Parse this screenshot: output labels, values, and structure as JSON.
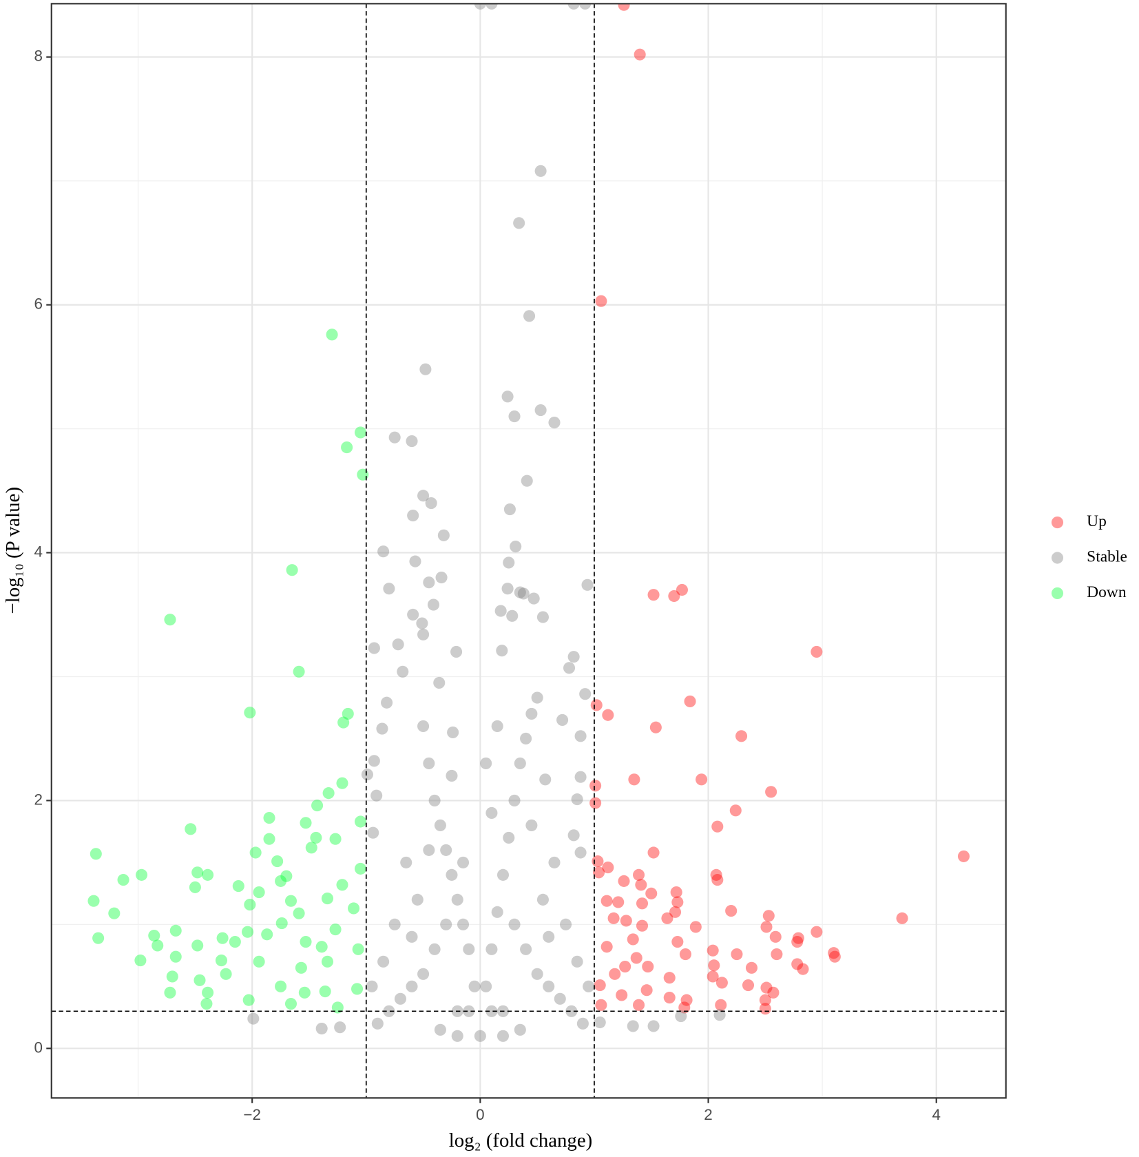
{
  "chart_data": {
    "type": "scatter",
    "xlabel": "log₂ (fold change)",
    "ylabel": "−log₁₀ (P value)",
    "xlim": [
      -3.76,
      4.61
    ],
    "ylim": [
      -0.4,
      8.43
    ],
    "xticks": [
      {
        "value": -2,
        "label": "−2"
      },
      0,
      2,
      4
    ],
    "yticks": [
      0,
      2,
      4,
      6,
      8
    ],
    "minor_xticks": [
      -3,
      -1,
      1,
      3
    ],
    "minor_yticks": [
      1,
      3,
      5,
      7
    ],
    "grid": true,
    "thresholds": {
      "x": [
        -1,
        1
      ],
      "y": 0.3
    },
    "alpha": 0.4,
    "legend": "right",
    "series": [
      {
        "name": "Up",
        "color": "#ff0000",
        "x": [
          1.26,
          1.4,
          1.06,
          1.52,
          1.7,
          1.77,
          2.95,
          1.84,
          1.02,
          1.12,
          1.54,
          2.29,
          1.35,
          1.94,
          1.01,
          2.55,
          1.01,
          2.24,
          2.08,
          1.52,
          4.24,
          1.03,
          1.12,
          1.39,
          2.07,
          1.04,
          1.26,
          2.08,
          1.41,
          1.5,
          1.72,
          1.11,
          1.21,
          1.42,
          1.73,
          2.2,
          1.71,
          2.53,
          3.7,
          1.17,
          1.64,
          1.28,
          1.42,
          2.51,
          1.89,
          2.95,
          2.59,
          2.79,
          1.34,
          2.78,
          1.73,
          1.11,
          2.04,
          3.1,
          3.11,
          2.25,
          2.6,
          1.8,
          1.37,
          2.78,
          2.83,
          2.38,
          1.27,
          1.47,
          2.05,
          1.18,
          1.66,
          2.04,
          2.12,
          2.35,
          2.51,
          2.57,
          1.05,
          1.46,
          1.24,
          1.66,
          1.81,
          2.5,
          1.06,
          1.39,
          2.11,
          2.5,
          1.79
        ],
        "values": [
          8.42,
          8.02,
          6.03,
          3.66,
          3.65,
          3.7,
          3.2,
          2.8,
          2.77,
          2.69,
          2.59,
          2.52,
          2.17,
          2.17,
          2.12,
          2.07,
          1.98,
          1.92,
          1.79,
          1.58,
          1.55,
          1.51,
          1.46,
          1.4,
          1.4,
          1.42,
          1.35,
          1.36,
          1.32,
          1.25,
          1.26,
          1.19,
          1.18,
          1.17,
          1.18,
          1.11,
          1.1,
          1.07,
          1.05,
          1.05,
          1.05,
          1.03,
          0.99,
          0.98,
          0.98,
          0.94,
          0.9,
          0.89,
          0.88,
          0.86,
          0.86,
          0.82,
          0.79,
          0.77,
          0.74,
          0.76,
          0.76,
          0.76,
          0.73,
          0.68,
          0.64,
          0.65,
          0.66,
          0.66,
          0.67,
          0.6,
          0.57,
          0.58,
          0.53,
          0.51,
          0.49,
          0.45,
          0.51,
          0.47,
          0.43,
          0.41,
          0.39,
          0.39,
          0.35,
          0.35,
          0.35,
          0.32,
          0.33
        ]
      },
      {
        "name": "Stable",
        "color": "#808080",
        "x": [
          0.0,
          0.1,
          0.82,
          0.92,
          0.53,
          0.34,
          0.43,
          -0.48,
          0.24,
          0.53,
          0.3,
          0.65,
          -0.75,
          -0.6,
          0.41,
          -0.5,
          -0.43,
          -0.59,
          0.26,
          -0.32,
          0.31,
          -0.85,
          -0.57,
          0.25,
          -0.34,
          -0.45,
          0.94,
          -0.8,
          0.24,
          0.35,
          0.38,
          0.47,
          -0.41,
          0.18,
          0.55,
          -0.59,
          -0.51,
          0.28,
          -0.5,
          -0.93,
          -0.72,
          -0.21,
          0.19,
          0.82,
          -0.68,
          0.78,
          -0.36,
          0.92,
          -0.82,
          0.5,
          0.72,
          -0.86,
          -0.24,
          0.88,
          -0.93,
          -0.99,
          0.57,
          -0.91,
          0.88,
          0.85,
          -0.94,
          0.82,
          0.88,
          -1.23,
          -1.39,
          -1.99,
          1.52,
          1.34,
          2.1,
          1.76,
          1.05,
          -0.4,
          -0.35,
          -0.3,
          -0.25,
          -0.2,
          -0.15,
          -0.1,
          -0.05,
          0.0,
          0.05,
          0.1,
          0.15,
          0.2,
          0.25,
          0.3,
          0.35,
          -0.45,
          0.4,
          -0.5,
          0.45,
          -0.3,
          -0.4,
          -0.5,
          -0.6,
          -0.7,
          -0.8,
          -0.9,
          0.3,
          0.4,
          0.5,
          0.6,
          0.7,
          0.8,
          0.9,
          -0.2,
          0.2,
          -0.35,
          0.35,
          -0.55,
          0.55,
          -0.65,
          0.65,
          -0.75,
          0.75,
          -0.85,
          0.85,
          -0.95,
          0.95,
          -0.2,
          0.2,
          -0.15,
          0.1,
          0.05,
          0.15,
          -0.25,
          -0.1,
          0.1,
          -0.6,
          0.6,
          -0.45,
          0.45
        ],
        "values": [
          8.43,
          8.43,
          8.43,
          8.43,
          7.08,
          6.66,
          5.91,
          5.48,
          5.26,
          5.15,
          5.1,
          5.05,
          4.93,
          4.9,
          4.58,
          4.46,
          4.4,
          4.3,
          4.35,
          4.14,
          4.05,
          4.01,
          3.93,
          3.92,
          3.8,
          3.76,
          3.74,
          3.71,
          3.71,
          3.68,
          3.67,
          3.63,
          3.58,
          3.53,
          3.48,
          3.5,
          3.43,
          3.49,
          3.34,
          3.23,
          3.26,
          3.2,
          3.21,
          3.16,
          3.04,
          3.07,
          2.95,
          2.86,
          2.79,
          2.83,
          2.65,
          2.58,
          2.55,
          2.52,
          2.32,
          2.21,
          2.17,
          2.04,
          2.19,
          2.01,
          1.74,
          1.72,
          1.58,
          0.17,
          0.16,
          0.24,
          0.18,
          0.18,
          0.27,
          0.26,
          0.21,
          2.0,
          1.8,
          1.6,
          1.4,
          1.2,
          1.0,
          0.8,
          0.5,
          0.1,
          0.5,
          0.8,
          1.1,
          1.4,
          1.7,
          2.0,
          2.3,
          2.3,
          2.5,
          2.6,
          2.7,
          1.0,
          0.8,
          0.6,
          0.5,
          0.4,
          0.3,
          0.2,
          1.0,
          0.8,
          0.6,
          0.5,
          0.4,
          0.3,
          0.2,
          0.3,
          0.3,
          0.15,
          0.15,
          1.2,
          1.2,
          1.5,
          1.5,
          1.0,
          1.0,
          0.7,
          0.7,
          0.5,
          0.5,
          0.1,
          0.1,
          1.5,
          1.9,
          2.3,
          2.6,
          2.2,
          0.3,
          0.3,
          0.9,
          0.9,
          1.6,
          1.8
        ]
      },
      {
        "name": "Down",
        "color": "#00ff33",
        "x": [
          -1.3,
          -1.05,
          -1.17,
          -1.03,
          -1.65,
          -2.72,
          -1.59,
          -2.02,
          -1.16,
          -1.2,
          -1.21,
          -1.33,
          -1.43,
          -1.05,
          -1.85,
          -1.53,
          -2.54,
          -1.44,
          -1.27,
          -1.85,
          -1.48,
          -1.97,
          -3.37,
          -1.78,
          -1.05,
          -2.97,
          -2.48,
          -1.7,
          -3.13,
          -2.39,
          -1.75,
          -2.12,
          -2.5,
          -1.21,
          -1.94,
          -1.34,
          -3.39,
          -1.66,
          -2.02,
          -1.11,
          -3.21,
          -1.59,
          -1.74,
          -2.67,
          -2.04,
          -1.27,
          -1.87,
          -2.86,
          -3.35,
          -2.26,
          -2.15,
          -1.53,
          -2.48,
          -2.83,
          -1.39,
          -1.07,
          -2.67,
          -2.98,
          -2.27,
          -1.94,
          -1.34,
          -1.57,
          -2.7,
          -2.23,
          -2.46,
          -1.75,
          -2.39,
          -2.72,
          -1.36,
          -1.08,
          -2.03,
          -2.4,
          -1.66,
          -1.25,
          -1.54
        ],
        "values": [
          5.76,
          4.97,
          4.85,
          4.63,
          3.86,
          3.46,
          3.04,
          2.71,
          2.7,
          2.63,
          2.14,
          2.06,
          1.96,
          1.83,
          1.86,
          1.82,
          1.77,
          1.7,
          1.69,
          1.69,
          1.62,
          1.58,
          1.57,
          1.51,
          1.45,
          1.4,
          1.42,
          1.39,
          1.36,
          1.4,
          1.35,
          1.31,
          1.3,
          1.32,
          1.26,
          1.21,
          1.19,
          1.19,
          1.16,
          1.13,
          1.09,
          1.09,
          1.01,
          0.95,
          0.94,
          0.96,
          0.92,
          0.91,
          0.89,
          0.89,
          0.86,
          0.86,
          0.83,
          0.83,
          0.82,
          0.8,
          0.74,
          0.71,
          0.71,
          0.7,
          0.7,
          0.65,
          0.58,
          0.6,
          0.55,
          0.5,
          0.45,
          0.45,
          0.46,
          0.48,
          0.39,
          0.36,
          0.36,
          0.33,
          0.45
        ]
      }
    ]
  }
}
